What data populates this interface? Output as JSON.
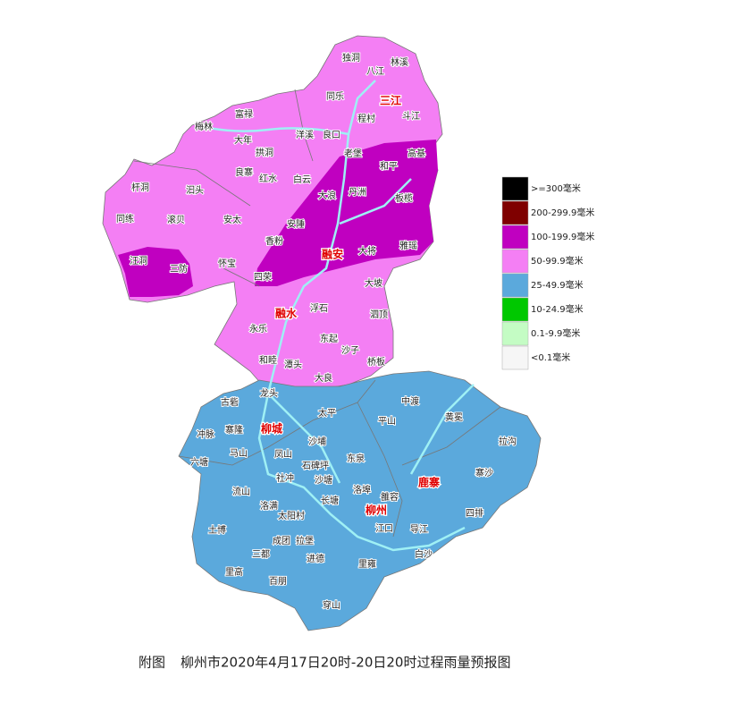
{
  "counties": [
    "三江",
    "融安",
    "融水",
    "柳城",
    "鹿寨",
    "柳州"
  ],
  "towns": [
    "独洞",
    "八江",
    "林溪",
    "同乐",
    "程村",
    "斗江",
    "梅林",
    "富禄",
    "洋溪",
    "良口",
    "大年",
    "拱洞",
    "老堡",
    "和平",
    "高基",
    "良寨",
    "红水",
    "白云",
    "杆洞",
    "汩头",
    "大浪",
    "丹洲",
    "板榄",
    "同练",
    "滚贝",
    "安太",
    "安陲",
    "香粉",
    "大将",
    "雅瑶",
    "汪洞",
    "三防",
    "怀宝",
    "四荣",
    "大坡",
    "浮石",
    "泗顶",
    "永乐",
    "东起",
    "沙子",
    "和睦",
    "潭头",
    "桥板",
    "大良",
    "龙头",
    "古砦",
    "中渡",
    "太平",
    "寨隆",
    "平山",
    "黄冕",
    "冲脉",
    "沙埔",
    "拉沟",
    "马山",
    "凤山",
    "东泉",
    "六塘",
    "石碑坪",
    "寨沙",
    "社冲",
    "沙塘",
    "流山",
    "洛埠",
    "雒容",
    "长塘",
    "洛满",
    "太阳村",
    "四排",
    "土博",
    "江口",
    "导江",
    "成团",
    "拉堡",
    "三都",
    "进德",
    "白沙",
    "里高",
    "里雍",
    "百朋",
    "穿山"
  ],
  "legend": [
    {
      "label": ">=300毫米",
      "color": "#000000"
    },
    {
      "label": "200-299.9毫米",
      "color": "#7f0000"
    },
    {
      "label": "100-199.9毫米",
      "color": "#c000c0"
    },
    {
      "label": "50-99.9毫米",
      "color": "#f47ff4"
    },
    {
      "label": "25-49.9毫米",
      "color": "#5ba9dc"
    },
    {
      "label": "10-24.9毫米",
      "color": "#00c800"
    },
    {
      "label": "0.1-9.9毫米",
      "color": "#c4fcc4"
    },
    {
      "label": "<0.1毫米",
      "color": "#f6f6f6"
    }
  ],
  "caption": {
    "prefix": "附图",
    "title": "柳州市2020年4月17日20时-20日20时过程雨量预报图"
  }
}
